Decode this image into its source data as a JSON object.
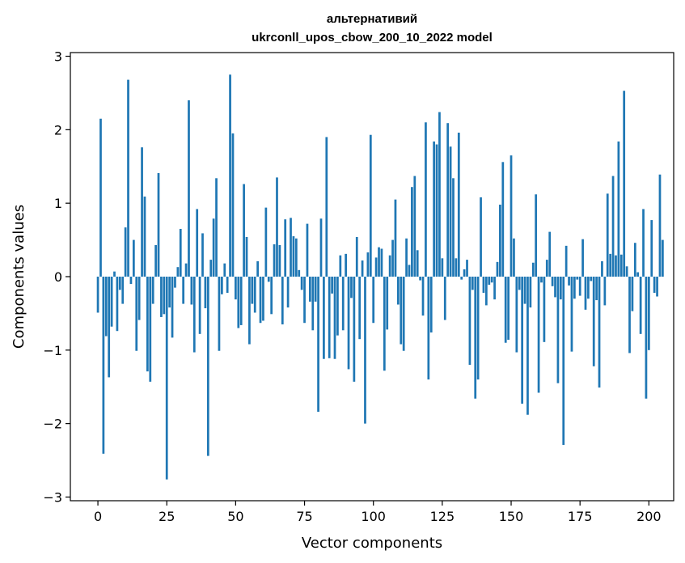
{
  "chart_data": {
    "type": "bar",
    "title_lines": [
      "альтернативий",
      "ukrconll_upos_cbow_200_10_2022 model"
    ],
    "xlabel": "Vector components",
    "ylabel": "Components values",
    "xlim": [
      -10,
      209
    ],
    "ylim": [
      -3.05,
      3.05
    ],
    "xticks": [
      0,
      25,
      50,
      75,
      100,
      125,
      150,
      175,
      200
    ],
    "xtick_labels": [
      "0",
      "25",
      "50",
      "75",
      "100",
      "125",
      "150",
      "175",
      "200"
    ],
    "yticks": [
      -3,
      -2,
      -1,
      0,
      1,
      2,
      3
    ],
    "ytick_labels": [
      "−3",
      "−2",
      "−1",
      "0",
      "1",
      "2",
      "3"
    ],
    "grid": false,
    "bar_color": "#1f77b4",
    "x_start": 0,
    "values": [
      -0.49,
      2.15,
      -2.41,
      -0.81,
      -1.37,
      -0.68,
      0.07,
      -0.74,
      -0.18,
      -0.37,
      0.67,
      2.68,
      -0.1,
      0.5,
      -1.01,
      -0.59,
      1.76,
      1.09,
      -1.29,
      -1.43,
      -0.37,
      0.43,
      1.41,
      -0.55,
      -0.51,
      -2.76,
      -0.42,
      -0.83,
      -0.15,
      0.13,
      0.65,
      -0.37,
      0.18,
      2.4,
      -0.38,
      -1.03,
      0.92,
      -0.78,
      0.59,
      -0.43,
      -2.44,
      0.23,
      0.79,
      1.34,
      -1.01,
      -0.24,
      0.18,
      -0.22,
      2.75,
      1.95,
      -0.31,
      -0.7,
      -0.66,
      1.26,
      0.54,
      -0.92,
      -0.37,
      -0.49,
      0.21,
      -0.63,
      -0.6,
      0.94,
      -0.07,
      -0.51,
      0.44,
      1.35,
      0.43,
      -0.65,
      0.78,
      -0.42,
      0.8,
      0.55,
      0.52,
      0.09,
      -0.18,
      -0.63,
      0.72,
      -0.34,
      -0.73,
      -0.34,
      -1.84,
      0.79,
      -1.12,
      1.9,
      -1.11,
      -0.23,
      -1.12,
      -0.8,
      0.29,
      -0.73,
      0.31,
      -1.26,
      -0.29,
      -1.43,
      0.54,
      -0.85,
      0.22,
      -2.0,
      0.33,
      1.93,
      -0.63,
      0.26,
      0.4,
      0.38,
      -1.28,
      -0.72,
      0.29,
      0.5,
      1.05,
      -0.38,
      -0.92,
      -1.01,
      0.52,
      0.16,
      1.22,
      1.37,
      0.36,
      -0.05,
      -0.53,
      2.1,
      -1.4,
      -0.76,
      1.84,
      1.8,
      2.24,
      0.25,
      -0.59,
      2.09,
      1.77,
      1.34,
      0.25,
      1.96,
      -0.04,
      0.1,
      0.23,
      -1.2,
      -0.18,
      -1.66,
      -1.4,
      1.08,
      -0.22,
      -0.39,
      -0.11,
      -0.08,
      -0.31,
      0.2,
      0.98,
      1.56,
      -0.9,
      -0.86,
      1.65,
      0.52,
      -1.03,
      -0.18,
      -1.73,
      -0.37,
      -1.88,
      -0.42,
      0.19,
      1.12,
      -1.58,
      -0.08,
      -0.89,
      0.23,
      0.61,
      -0.13,
      -0.28,
      -1.45,
      -0.31,
      -2.29,
      0.42,
      -0.12,
      -1.02,
      -0.3,
      -0.04,
      -0.26,
      0.51,
      -0.45,
      -0.3,
      -0.06,
      -1.22,
      -0.32,
      -1.51,
      0.21,
      -0.39,
      1.13,
      0.31,
      1.37,
      0.29,
      1.84,
      0.3,
      2.53,
      0.14,
      -1.04,
      -0.47,
      0.46,
      0.06,
      -0.78,
      0.92,
      -1.66
    ],
    "tail_values": [
      -1.0,
      0.77,
      -0.22,
      -0.27,
      1.39,
      0.5
    ]
  }
}
